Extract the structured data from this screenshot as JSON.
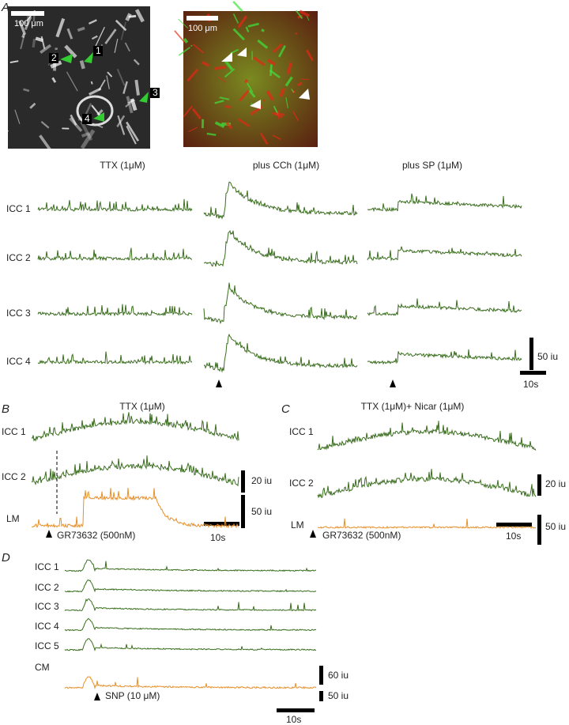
{
  "panels": {
    "A": {
      "label": "A",
      "image1": {
        "scale": "100 μm",
        "cells": [
          "1",
          "2",
          "3",
          "4"
        ]
      },
      "image2": {
        "scale": "100 μm"
      },
      "columns": [
        "TTX (1μM)",
        "plus CCh (1μM)",
        "plus SP (1μM)"
      ],
      "rows": [
        "ICC 1",
        "ICC 2",
        "ICC 3",
        "ICC 4"
      ],
      "amp_scale": "50 iu",
      "time_scale": "10s"
    },
    "B": {
      "label": "B",
      "title": "TTX (1μM)",
      "rows": [
        "ICC 1",
        "ICC 2",
        "LM"
      ],
      "scales": [
        "20 iu",
        "50 iu"
      ],
      "time_scale": "10s",
      "stimulus": "GR73632 (500nM)"
    },
    "C": {
      "label": "C",
      "title": "TTX (1μM)+ Nicar (1μM)",
      "rows": [
        "ICC 1",
        "ICC 2",
        "LM"
      ],
      "scales": [
        "20 iu",
        "50 iu"
      ],
      "time_scale": "10s",
      "stimulus": "GR73632 (500nM)"
    },
    "D": {
      "label": "D",
      "rows": [
        "ICC 1",
        "ICC 2",
        "ICC 3",
        "ICC 4",
        "ICC 5",
        "CM"
      ],
      "scales": [
        "60 iu",
        "50 iu"
      ],
      "time_scale": "10s",
      "stimulus": "SNP (10 μM)"
    }
  }
}
